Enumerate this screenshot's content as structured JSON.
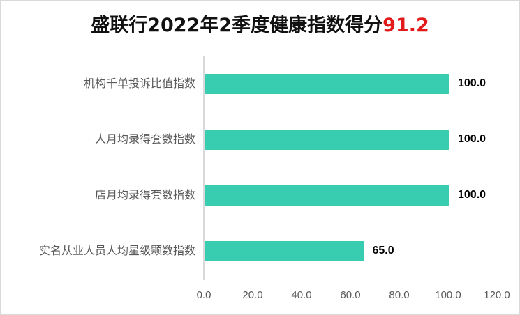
{
  "title": {
    "prefix": "盛联行2022年2季度健康指数得分",
    "score": "91.2",
    "score_color": "#e31a1a"
  },
  "bar_color": "#38ccb0",
  "chart_data": {
    "type": "bar",
    "orientation": "horizontal",
    "title": "盛联行2022年2季度健康指数得分91.2",
    "categories": [
      "机构千单投诉比值指数",
      "人月均录得套数指数",
      "店月均录得套数指数",
      "实名从业人员人均星级颗数指数"
    ],
    "values": [
      100.0,
      100.0,
      100.0,
      65.0
    ],
    "value_labels": [
      "100.0",
      "100.0",
      "100.0",
      "65.0"
    ],
    "xlabel": "",
    "ylabel": "",
    "xlim": [
      0,
      120
    ],
    "x_ticks": [
      "0.0",
      "20.0",
      "40.0",
      "60.0",
      "80.0",
      "100.0",
      "120.0"
    ],
    "grid": false,
    "legend": "none"
  }
}
